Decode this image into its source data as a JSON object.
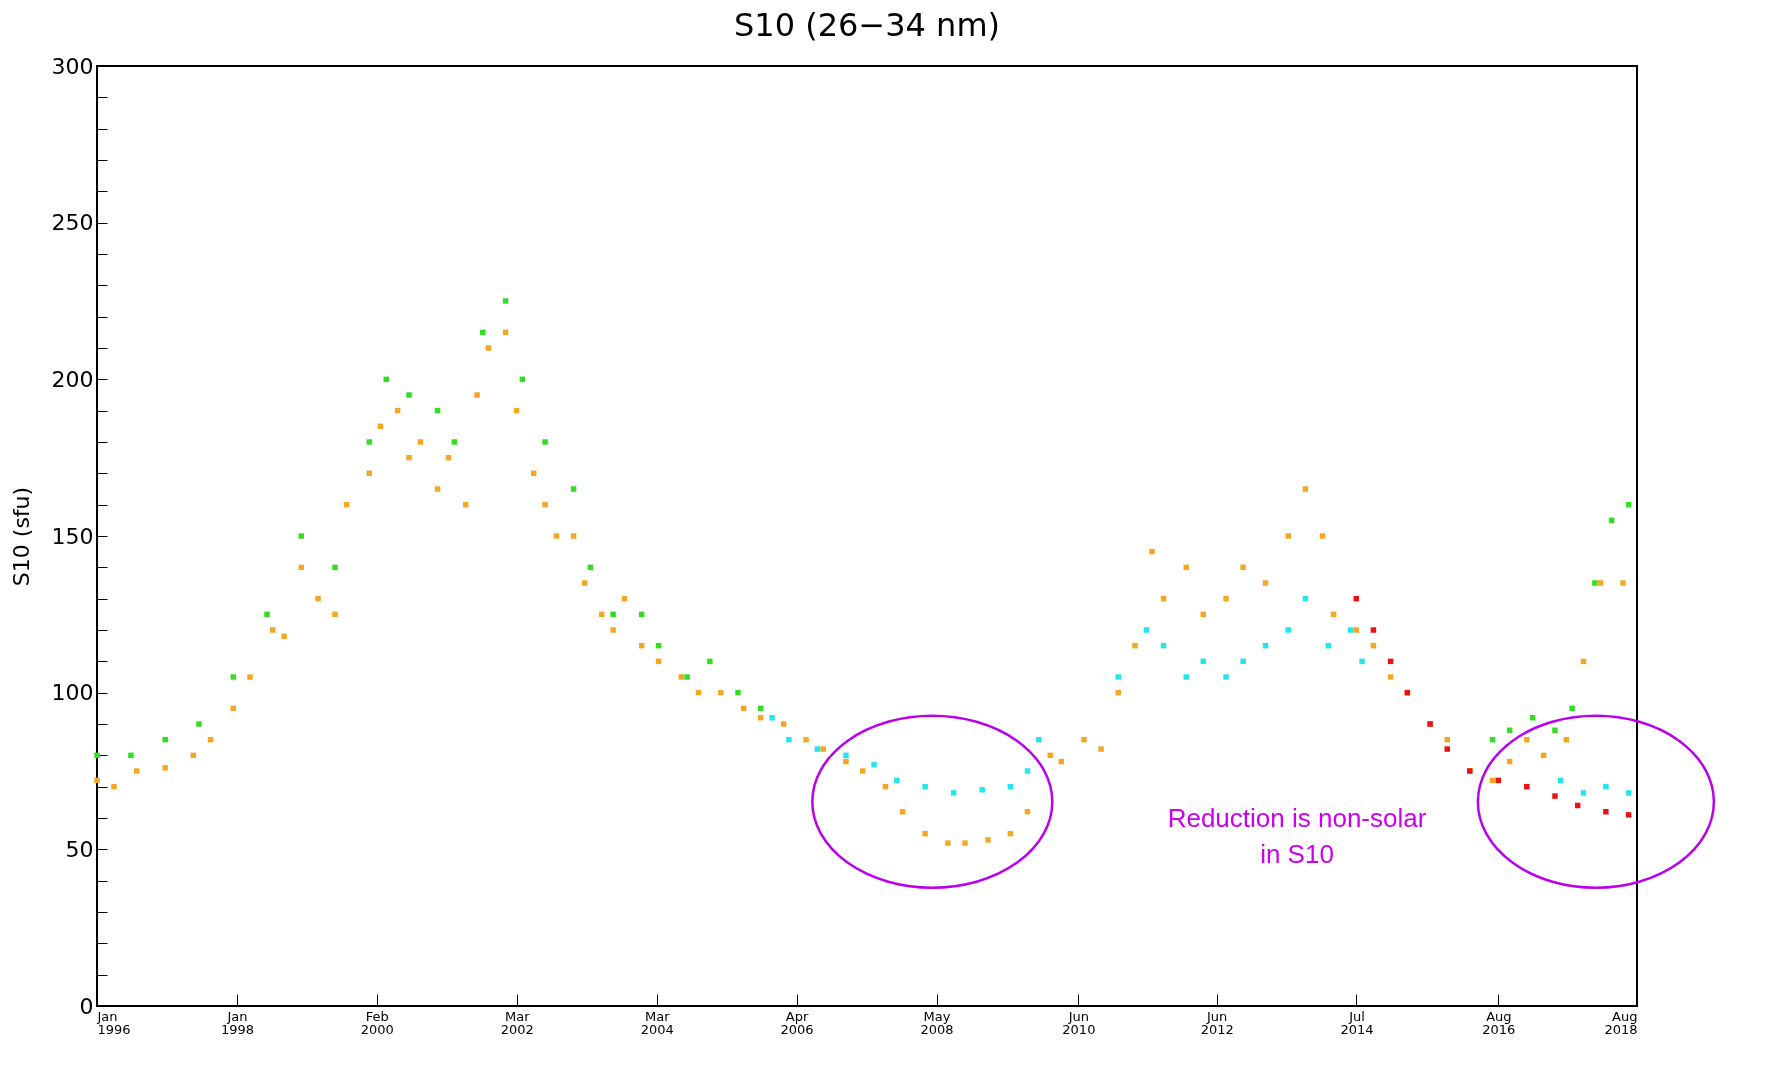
{
  "chart_data": {
    "type": "scatter",
    "title": "S10 (26−34 nm)",
    "ylabel": "S10 (sfu)",
    "marker": "square",
    "annotations": [
      "Reduction is non-solar\nin S10"
    ],
    "xlim": [
      "1996-01-01",
      "2018-08-15"
    ],
    "xticks": [
      {
        "value": "1996-01-01",
        "label": "Jan 1996"
      },
      {
        "value": "1998-01-21",
        "label": "Jan 1998"
      },
      {
        "value": "2000-02-10",
        "label": "Feb 2000"
      },
      {
        "value": "2002-03-02",
        "label": "Mar 2002"
      },
      {
        "value": "2004-03-22",
        "label": "Mar 2004"
      },
      {
        "value": "2006-04-11",
        "label": "Apr 2006"
      },
      {
        "value": "2008-05-01",
        "label": "May 2008"
      },
      {
        "value": "2010-06-01",
        "label": "Jun 2010"
      },
      {
        "value": "2012-06-12",
        "label": "Jun 2012"
      },
      {
        "value": "2014-07-02",
        "label": "Jul 2014"
      },
      {
        "value": "2016-08-01",
        "label": "Aug 2016"
      },
      {
        "value": "2018-08-15",
        "label": "Aug 2018"
      }
    ],
    "ylim": [
      0,
      300
    ],
    "yticks": [
      0,
      {
        "value": 10,
        "label": null
      },
      {
        "value": 20,
        "label": null
      },
      {
        "value": 30,
        "label": null
      },
      {
        "value": 40,
        "label": null
      },
      50,
      {
        "value": 60,
        "label": null
      },
      {
        "value": 70,
        "label": null
      },
      {
        "value": 80,
        "label": null
      },
      {
        "value": 90,
        "label": null
      },
      100,
      {
        "value": 110,
        "label": null
      },
      {
        "value": 120,
        "label": null
      },
      {
        "value": 130,
        "label": null
      },
      {
        "value": 140,
        "label": null
      },
      150,
      {
        "value": 160,
        "label": null
      },
      {
        "value": 170,
        "label": null
      },
      {
        "value": 180,
        "label": null
      },
      {
        "value": 190,
        "label": null
      },
      200,
      {
        "value": 210,
        "label": null
      },
      {
        "value": 220,
        "label": null
      },
      {
        "value": 230,
        "label": null
      },
      {
        "value": 240,
        "label": null
      },
      250,
      {
        "value": 260,
        "label": null
      },
      {
        "value": 270,
        "label": null
      },
      {
        "value": 280,
        "label": null
      },
      {
        "value": 290,
        "label": null
      },
      300
    ],
    "series": [
      {
        "color": "#33dd22",
        "x": [
          "1996-01",
          "1996-07",
          "1997-01",
          "1997-07",
          "1998-01",
          "1998-07",
          "1999-01",
          "1999-07",
          "2000-01",
          "2000-04",
          "2000-08",
          "2001-01",
          "2001-04",
          "2001-09",
          "2002-01",
          "2002-04",
          "2002-08",
          "2003-01",
          "2003-04",
          "2003-08",
          "2004-01",
          "2004-04",
          "2004-09",
          "2005-01",
          "2005-06",
          "2005-10",
          "2016-07",
          "2016-10",
          "2017-02",
          "2017-06",
          "2017-09",
          "2018-01",
          "2018-04",
          "2018-07"
        ],
        "values": [
          80,
          80,
          85,
          90,
          105,
          125,
          150,
          140,
          180,
          200,
          195,
          190,
          180,
          215,
          225,
          200,
          180,
          165,
          140,
          125,
          125,
          115,
          105,
          110,
          100,
          95,
          85,
          88,
          92,
          88,
          95,
          135,
          155,
          160
        ]
      },
      {
        "color": "#f5a623",
        "x": [
          "1996-01",
          "1996-04",
          "1996-08",
          "1997-01",
          "1997-06",
          "1997-09",
          "1998-01",
          "1998-04",
          "1998-08",
          "1998-10",
          "1999-01",
          "1999-04",
          "1999-07",
          "1999-09",
          "2000-01",
          "2000-03",
          "2000-06",
          "2000-08",
          "2000-10",
          "2001-01",
          "2001-03",
          "2001-06",
          "2001-08",
          "2001-10",
          "2002-01",
          "2002-03",
          "2002-06",
          "2002-08",
          "2002-10",
          "2003-01",
          "2003-03",
          "2003-06",
          "2003-08",
          "2003-10",
          "2004-01",
          "2004-04",
          "2004-08",
          "2004-11",
          "2005-03",
          "2005-07",
          "2005-10",
          "2006-02",
          "2006-06",
          "2006-09",
          "2007-01",
          "2007-04",
          "2007-08",
          "2007-11",
          "2008-03",
          "2008-07",
          "2008-10",
          "2009-02",
          "2009-06",
          "2009-09",
          "2010-01",
          "2010-03",
          "2010-07",
          "2010-10",
          "2011-01",
          "2011-04",
          "2011-07",
          "2011-09",
          "2012-01",
          "2012-04",
          "2012-08",
          "2012-11",
          "2013-03",
          "2013-07",
          "2013-10",
          "2014-01",
          "2014-03",
          "2014-07",
          "2014-10",
          "2015-01",
          "2015-04",
          "2015-08",
          "2015-11",
          "2016-03",
          "2016-07",
          "2016-10",
          "2017-01",
          "2017-04",
          "2017-08",
          "2017-11",
          "2018-02",
          "2018-06"
        ],
        "values": [
          72,
          70,
          75,
          76,
          80,
          85,
          95,
          105,
          120,
          118,
          140,
          130,
          125,
          160,
          170,
          185,
          190,
          175,
          180,
          165,
          175,
          160,
          195,
          210,
          215,
          190,
          170,
          160,
          150,
          150,
          135,
          125,
          120,
          130,
          115,
          110,
          105,
          100,
          100,
          95,
          92,
          90,
          85,
          82,
          78,
          75,
          70,
          62,
          55,
          52,
          52,
          53,
          55,
          62,
          80,
          78,
          85,
          82,
          100,
          115,
          145,
          130,
          140,
          125,
          130,
          140,
          135,
          150,
          165,
          150,
          125,
          120,
          115,
          105,
          100,
          90,
          85,
          75,
          72,
          78,
          85,
          80,
          85,
          110,
          135,
          135
        ]
      },
      {
        "color": "#22e5ee",
        "x": [
          "2005-12",
          "2006-03",
          "2006-08",
          "2007-01",
          "2007-06",
          "2007-10",
          "2008-03",
          "2008-08",
          "2009-01",
          "2009-06",
          "2009-09",
          "2009-11",
          "2011-01",
          "2011-06",
          "2011-09",
          "2012-01",
          "2012-04",
          "2012-08",
          "2012-11",
          "2013-03",
          "2013-07",
          "2013-10",
          "2014-02",
          "2014-06",
          "2014-08",
          "2017-07",
          "2017-11",
          "2018-03",
          "2018-07"
        ],
        "values": [
          92,
          85,
          82,
          80,
          77,
          72,
          70,
          68,
          69,
          70,
          75,
          85,
          105,
          120,
          115,
          105,
          110,
          105,
          110,
          115,
          120,
          130,
          115,
          120,
          110,
          72,
          68,
          70,
          68
        ]
      },
      {
        "color": "#ee1111",
        "x": [
          "2014-07",
          "2014-10",
          "2015-01",
          "2015-04",
          "2015-08",
          "2015-11",
          "2016-03",
          "2016-08",
          "2017-01",
          "2017-06",
          "2017-10",
          "2018-03",
          "2018-07"
        ],
        "values": [
          130,
          120,
          110,
          100,
          90,
          82,
          75,
          72,
          70,
          67,
          64,
          62,
          61
        ]
      }
    ]
  }
}
